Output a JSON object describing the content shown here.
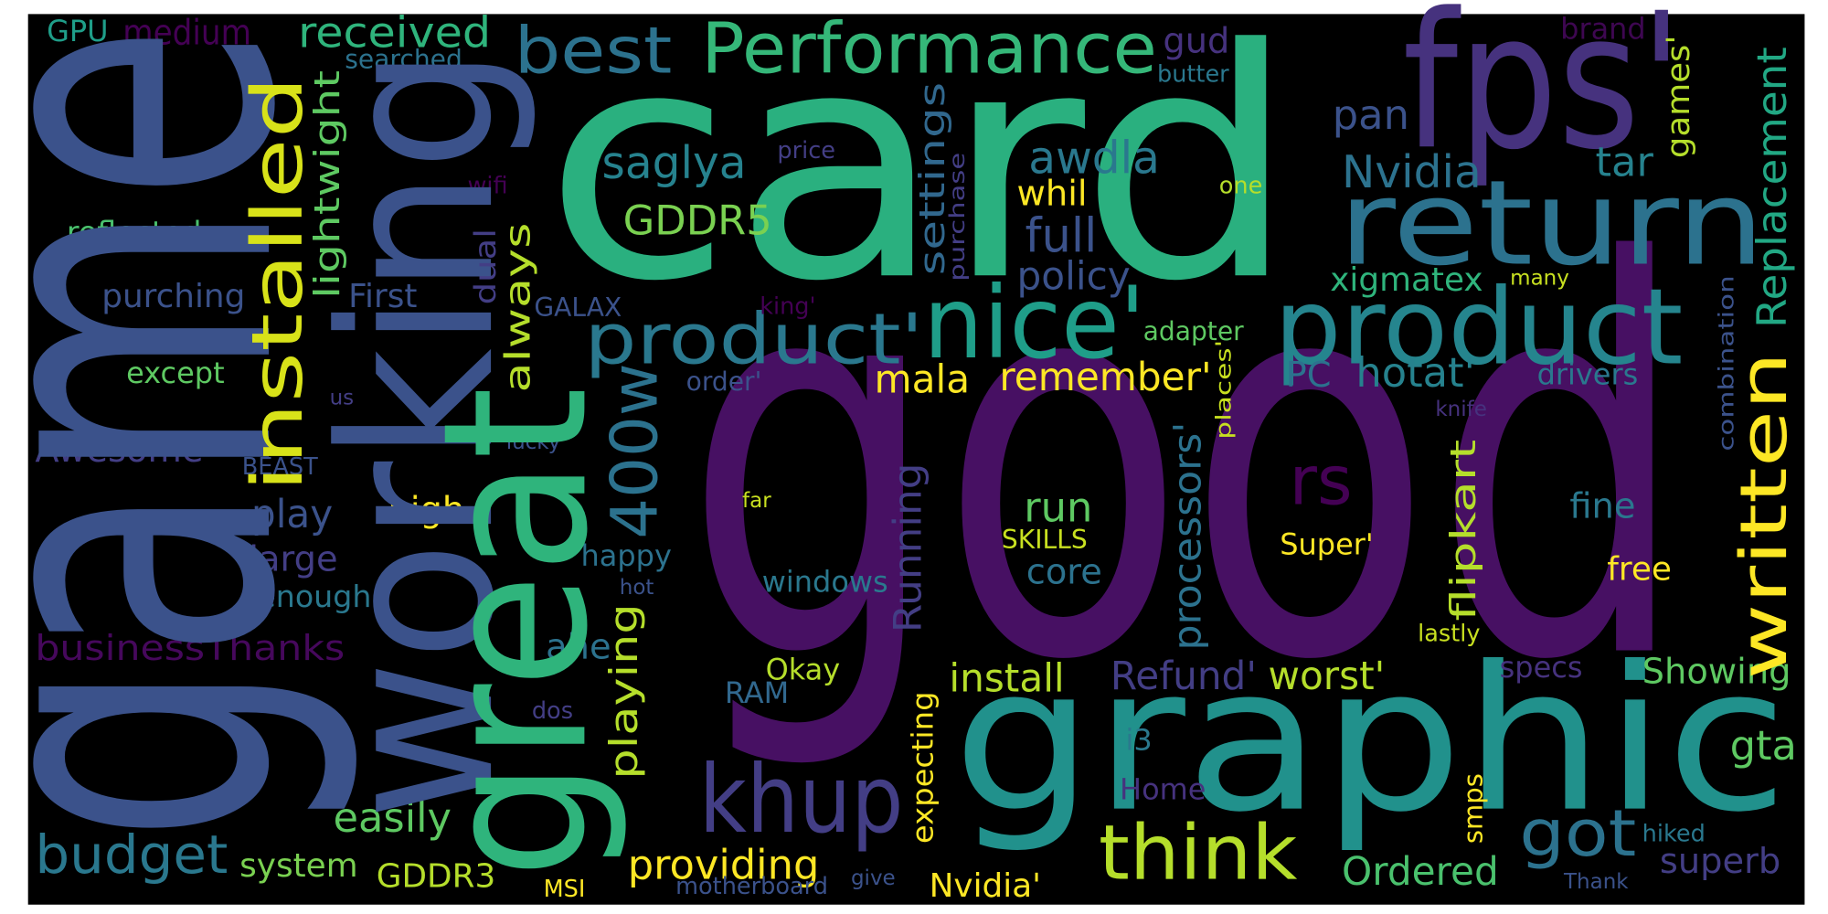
{
  "words": [
    {
      "text": "card"
    },
    {
      "text": "good"
    },
    {
      "text": "graphic"
    },
    {
      "text": "fps'"
    },
    {
      "text": "return"
    },
    {
      "text": "product"
    },
    {
      "text": "nice'"
    },
    {
      "text": "product'"
    },
    {
      "text": "Performance"
    },
    {
      "text": "best"
    },
    {
      "text": "received"
    },
    {
      "text": "medium"
    },
    {
      "text": "GPU"
    },
    {
      "text": "searched"
    },
    {
      "text": "gud"
    },
    {
      "text": "brand"
    },
    {
      "text": "butter"
    },
    {
      "text": "price"
    },
    {
      "text": "saglya"
    },
    {
      "text": "awdla"
    },
    {
      "text": "pan"
    },
    {
      "text": "Nvidia"
    },
    {
      "text": "tar"
    },
    {
      "text": "one"
    },
    {
      "text": "wifi"
    },
    {
      "text": "whil"
    },
    {
      "text": "GDDR5"
    },
    {
      "text": "full"
    },
    {
      "text": "reflected"
    },
    {
      "text": "First"
    },
    {
      "text": "purching"
    },
    {
      "text": "policy"
    },
    {
      "text": "xigmatex"
    },
    {
      "text": "many"
    },
    {
      "text": "GALAX"
    },
    {
      "text": "king'"
    },
    {
      "text": "adapter"
    },
    {
      "text": "except"
    },
    {
      "text": "order'"
    },
    {
      "text": "mala"
    },
    {
      "text": "remember'"
    },
    {
      "text": "PC"
    },
    {
      "text": "hotat'"
    },
    {
      "text": "drivers"
    },
    {
      "text": "us"
    },
    {
      "text": "knife"
    },
    {
      "text": "lucky"
    },
    {
      "text": "Awesome"
    },
    {
      "text": "BEAST"
    },
    {
      "text": "rs"
    },
    {
      "text": "play"
    },
    {
      "text": "high"
    },
    {
      "text": "far"
    },
    {
      "text": "run"
    },
    {
      "text": "fine"
    },
    {
      "text": "large"
    },
    {
      "text": "happy"
    },
    {
      "text": "SKILLS"
    },
    {
      "text": "Super'"
    },
    {
      "text": "core"
    },
    {
      "text": "free"
    },
    {
      "text": "hot"
    },
    {
      "text": "windows"
    },
    {
      "text": "enough"
    },
    {
      "text": "businessThanks"
    },
    {
      "text": "lastly"
    },
    {
      "text": "ahe"
    },
    {
      "text": "Okay"
    },
    {
      "text": "install"
    },
    {
      "text": "Refund'"
    },
    {
      "text": "worst'"
    },
    {
      "text": "specs"
    },
    {
      "text": "Showing"
    },
    {
      "text": "RAM"
    },
    {
      "text": "dos"
    },
    {
      "text": "i3"
    },
    {
      "text": "gta"
    },
    {
      "text": "khup"
    },
    {
      "text": "Home"
    },
    {
      "text": "easily"
    },
    {
      "text": "got"
    },
    {
      "text": "hiked"
    },
    {
      "text": "budget"
    },
    {
      "text": "think"
    },
    {
      "text": "superb"
    },
    {
      "text": "system"
    },
    {
      "text": "GDDR3"
    },
    {
      "text": "providing"
    },
    {
      "text": "Ordered"
    },
    {
      "text": "Nvidia'"
    },
    {
      "text": "MSI"
    },
    {
      "text": "give"
    },
    {
      "text": "motherboard"
    },
    {
      "text": "Thank"
    },
    {
      "text": "game"
    },
    {
      "text": "working"
    },
    {
      "text": "great"
    },
    {
      "text": "installed"
    },
    {
      "text": "lightwight"
    },
    {
      "text": "400w"
    },
    {
      "text": "always"
    },
    {
      "text": "dual"
    },
    {
      "text": "playing"
    },
    {
      "text": "settings"
    },
    {
      "text": "purchase"
    },
    {
      "text": "Running"
    },
    {
      "text": "processors'"
    },
    {
      "text": "places'"
    },
    {
      "text": "flipkart"
    },
    {
      "text": "written"
    },
    {
      "text": "Replacement"
    },
    {
      "text": "games'"
    },
    {
      "text": "combination"
    },
    {
      "text": "expecting"
    },
    {
      "text": "smps"
    }
  ]
}
